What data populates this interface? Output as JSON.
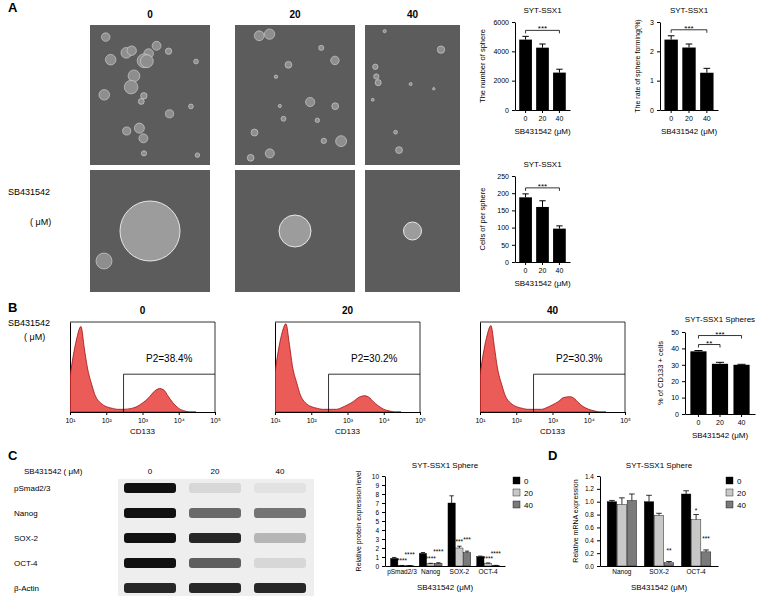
{
  "figure": {
    "panel_labels": [
      "A",
      "B",
      "C",
      "D"
    ],
    "images": {
      "row_label": [
        "SB431542",
        "( μM)"
      ],
      "columns": [
        "0",
        "20",
        "40"
      ]
    },
    "flow_row_label": [
      "SB431542",
      "( μM)"
    ],
    "blot": {
      "header": "SB431542 ( μM)",
      "lanes": [
        "0",
        "20",
        "40"
      ],
      "rows": [
        {
          "name": "pSmad2/3",
          "intensity": [
            1.0,
            0.1,
            0.05
          ]
        },
        {
          "name": "Nanog",
          "intensity": [
            1.0,
            0.6,
            0.55
          ]
        },
        {
          "name": "SOX-2",
          "intensity": [
            1.0,
            0.9,
            0.25
          ]
        },
        {
          "name": "OCT-4",
          "intensity": [
            1.0,
            0.65,
            0.1
          ]
        },
        {
          "name": "β-Actin",
          "intensity": [
            0.9,
            0.9,
            0.9
          ]
        }
      ]
    }
  },
  "chart_data": [
    {
      "type": "bar",
      "title": "SYT-SSX1",
      "y_label": "The number of sphere",
      "x_label": "SB431542 (μM)",
      "categories": [
        "0",
        "20",
        "40"
      ],
      "values": [
        4800,
        4250,
        2550
      ],
      "errors": [
        220,
        250,
        230
      ],
      "color": "#000000",
      "ylim": [
        0,
        6000
      ],
      "yticks": [
        0,
        2000,
        4000,
        6000
      ],
      "comparisons": [
        {
          "between": [
            "0",
            "40"
          ],
          "label": "***"
        }
      ]
    },
    {
      "type": "bar",
      "title": "SYT-SSX1",
      "y_label": "The rate of sphere forming(%)",
      "x_label": "SB431542 (μM)",
      "categories": [
        "0",
        "20",
        "40"
      ],
      "values": [
        2.4,
        2.13,
        1.27
      ],
      "errors": [
        0.13,
        0.12,
        0.15
      ],
      "color": "#000000",
      "ylim": [
        0,
        3
      ],
      "yticks": [
        0,
        1,
        2,
        3
      ],
      "comparisons": [
        {
          "between": [
            "0",
            "40"
          ],
          "label": "***"
        }
      ]
    },
    {
      "type": "bar",
      "title": "SYT-SSX1",
      "y_label": "Cells of per sphere",
      "x_label": "SB431542 (μM)",
      "categories": [
        "0",
        "20",
        "40"
      ],
      "values": [
        188,
        160,
        97
      ],
      "errors": [
        10,
        18,
        8
      ],
      "color": "#000000",
      "ylim": [
        0,
        250
      ],
      "yticks": [
        0,
        50,
        100,
        150,
        200,
        250
      ],
      "comparisons": [
        {
          "between": [
            "0",
            "40"
          ],
          "label": "***"
        }
      ]
    },
    {
      "type": "area",
      "title": "0",
      "x_label": "CD133",
      "log": "x",
      "tick_labels": "x",
      "color": "#e8403c",
      "x": [
        10,
        15,
        20,
        25,
        30,
        40,
        50,
        70,
        100,
        150,
        200,
        300,
        500,
        700,
        1000,
        1500,
        2000,
        3000,
        4000,
        5000,
        7000,
        10000,
        15000,
        20000,
        30000
      ],
      "values": [
        40,
        80,
        95,
        70,
        50,
        30,
        18,
        10,
        6,
        4,
        3,
        3,
        4,
        6,
        10,
        16,
        22,
        26,
        24,
        18,
        10,
        4,
        1,
        0,
        0
      ],
      "xlim": [
        10,
        100000
      ],
      "xticks": [
        {
          "value": 10,
          "label": "10¹"
        },
        {
          "value": 100,
          "label": "10²"
        },
        {
          "value": 1000,
          "label": "10³"
        },
        {
          "value": 10000,
          "label": "10⁴"
        },
        {
          "value": 100000,
          "label": "10⁵"
        }
      ],
      "ylim": [
        0,
        100
      ],
      "gate": [
        300,
        100000
      ],
      "annotations": [
        "P2=38.4%"
      ]
    },
    {
      "type": "area",
      "title": "20",
      "x_label": "CD133",
      "log": "x",
      "tick_labels": "x",
      "color": "#e8403c",
      "x": [
        10,
        15,
        20,
        25,
        30,
        40,
        50,
        70,
        100,
        150,
        200,
        300,
        500,
        700,
        1000,
        1500,
        2000,
        3000,
        4000,
        5000,
        7000,
        10000,
        15000,
        20000,
        30000
      ],
      "values": [
        45,
        85,
        98,
        75,
        52,
        32,
        19,
        10,
        6,
        4,
        3,
        3,
        3,
        5,
        8,
        12,
        16,
        18,
        16,
        12,
        7,
        3,
        1,
        0,
        0
      ],
      "xlim": [
        10,
        100000
      ],
      "xticks": [
        {
          "value": 10,
          "label": "10¹"
        },
        {
          "value": 100,
          "label": "10²"
        },
        {
          "value": 1000,
          "label": "10³"
        },
        {
          "value": 10000,
          "label": "10⁴"
        },
        {
          "value": 100000,
          "label": "10⁵"
        }
      ],
      "ylim": [
        0,
        100
      ],
      "gate": [
        300,
        100000
      ],
      "annotations": [
        "P2=30.2%"
      ]
    },
    {
      "type": "area",
      "title": "40",
      "x_label": "CD133",
      "log": "x",
      "tick_labels": "x",
      "color": "#e8403c",
      "x": [
        10,
        15,
        20,
        25,
        30,
        40,
        50,
        70,
        100,
        150,
        200,
        300,
        500,
        700,
        1000,
        1500,
        2000,
        3000,
        4000,
        5000,
        7000,
        10000,
        15000,
        20000,
        30000
      ],
      "values": [
        42,
        82,
        96,
        72,
        50,
        30,
        18,
        10,
        6,
        4,
        3,
        3,
        3,
        5,
        8,
        12,
        16,
        17,
        15,
        11,
        6,
        3,
        1,
        0,
        0
      ],
      "xlim": [
        10,
        100000
      ],
      "xticks": [
        {
          "value": 10,
          "label": "10¹"
        },
        {
          "value": 100,
          "label": "10²"
        },
        {
          "value": 1000,
          "label": "10³"
        },
        {
          "value": 10000,
          "label": "10⁴"
        },
        {
          "value": 100000,
          "label": "10⁵"
        }
      ],
      "ylim": [
        0,
        100
      ],
      "gate": [
        300,
        100000
      ],
      "annotations": [
        "P2=30.3%"
      ]
    },
    {
      "type": "bar",
      "title": "SYT-SSX1 Spheres",
      "y_label": "% of CD133 + cells",
      "x_label": "SB431542 (μM)",
      "categories": [
        "0",
        "20",
        "40"
      ],
      "values": [
        38.2,
        30.6,
        30.0
      ],
      "errors": [
        0.5,
        0.9,
        0.3
      ],
      "color": "#000000",
      "ylim": [
        0,
        50
      ],
      "yticks": [
        0,
        10,
        20,
        30,
        40,
        50
      ],
      "comparisons": [
        {
          "between": [
            "0",
            "20"
          ],
          "label": "**"
        },
        {
          "between": [
            "0",
            "40"
          ],
          "label": "***"
        }
      ]
    },
    {
      "type": "bar",
      "title": "SYT-SSX1 Sphere",
      "y_label": "Relative protein expression level",
      "x_label": "SB431542 (μM)",
      "categories": [
        "pSmad2/3",
        "Nanog",
        "SOX-2",
        "OCT-4"
      ],
      "legend": "right",
      "series": [
        {
          "name": "0",
          "color": "#000000",
          "values": [
            0.85,
            1.4,
            7.0,
            1.05
          ],
          "errors": [
            0.1,
            0.1,
            0.8,
            0.05
          ]
        },
        {
          "name": "20",
          "color": "#c8c8c8",
          "values": [
            0.05,
            0.25,
            2.0,
            0.3
          ],
          "errors": [
            0.01,
            0.05,
            0.2,
            0.04
          ],
          "annotations": [
            "****",
            "****",
            "***",
            "****"
          ]
        },
        {
          "name": "40",
          "color": "#7a7a7a",
          "values": [
            0.03,
            0.3,
            1.5,
            0.05
          ],
          "errors": [
            0.01,
            0.06,
            0.15,
            0.02
          ],
          "annotations": [
            "****",
            "****",
            "***",
            "****"
          ]
        }
      ],
      "ylim": [
        0,
        10
      ],
      "yticks": [
        0,
        1,
        2,
        3,
        4,
        5,
        6,
        7,
        8,
        9,
        10
      ]
    },
    {
      "type": "bar",
      "title": "SYT-SSX1 Sphere",
      "y_label": "Relative mRNA expression",
      "x_label": "SB431542 (μM)",
      "categories": [
        "Nanog",
        "SOX-2",
        "OCT-4"
      ],
      "legend": "right",
      "series": [
        {
          "name": "0",
          "color": "#000000",
          "values": [
            1.0,
            1.0,
            1.12
          ],
          "errors": [
            0.02,
            0.1,
            0.05
          ]
        },
        {
          "name": "20",
          "color": "#c8c8c8",
          "values": [
            0.96,
            0.79,
            0.72
          ],
          "errors": [
            0.1,
            0.03,
            0.08
          ],
          "annotations": [
            null,
            null,
            "*"
          ]
        },
        {
          "name": "40",
          "color": "#7a7a7a",
          "values": [
            1.02,
            0.05,
            0.22
          ],
          "errors": [
            0.1,
            0.02,
            0.03
          ],
          "annotations": [
            null,
            "**",
            "***"
          ]
        }
      ],
      "ylim": [
        0,
        1.4
      ],
      "yticks": [
        {
          "value": 0,
          "label": "0.0"
        },
        0.2,
        0.4,
        0.6,
        0.8,
        {
          "value": 1,
          "label": "1.0"
        },
        1.2,
        1.4
      ]
    }
  ]
}
